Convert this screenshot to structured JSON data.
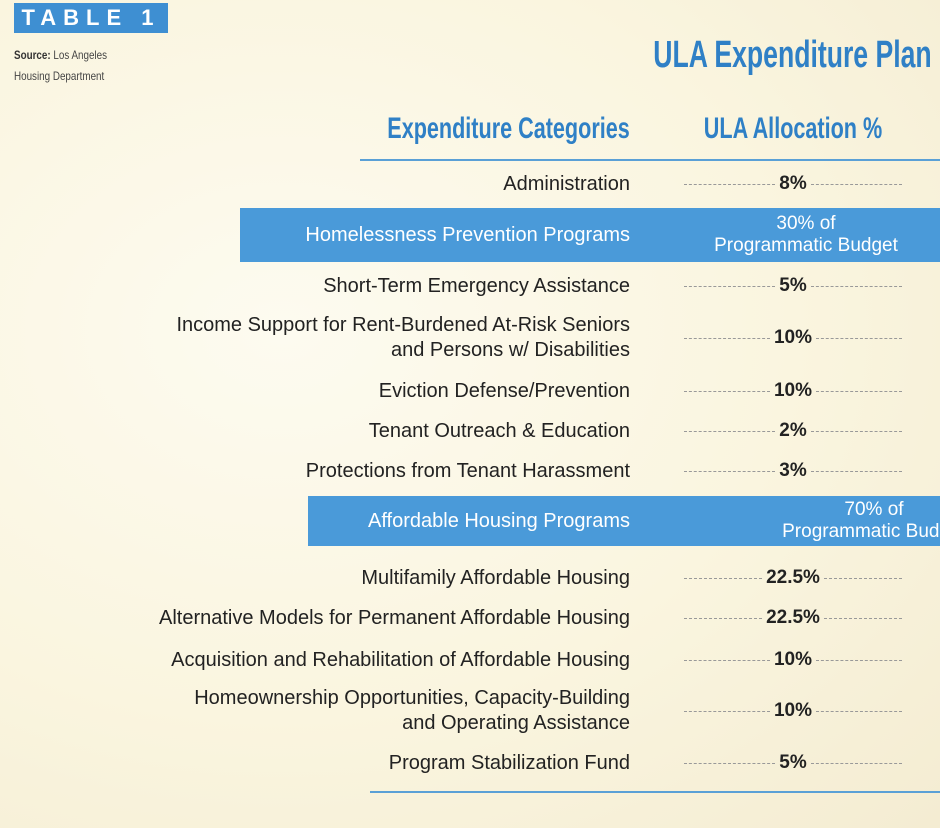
{
  "label": "TABLE 1",
  "source": {
    "prefix": "Source:",
    "lines": [
      "Los Angeles",
      "Housing Department"
    ]
  },
  "title": "ULA Expenditure Plan",
  "table": {
    "headers": [
      "Expenditure Categories",
      "ULA Allocation %"
    ],
    "rows": [
      {
        "category": [
          "Administration"
        ],
        "allocation": [
          "8%"
        ]
      }
    ],
    "sections": [
      {
        "category": [
          "Homelessness Prevention Programs"
        ],
        "allocation": [
          "30% of",
          "Programmatic Budget"
        ],
        "rows": [
          {
            "category": [
              "Short-Term Emergency Assistance"
            ],
            "allocation": [
              "5%"
            ]
          },
          {
            "category": [
              "Income Support for Rent-Burdened At-Risk Seniors",
              "and Persons w/ Disabilities"
            ],
            "allocation": [
              "10%"
            ]
          },
          {
            "category": [
              "Eviction Defense/Prevention"
            ],
            "allocation": [
              "10%"
            ]
          },
          {
            "category": [
              "Tenant Outreach & Education"
            ],
            "allocation": [
              "2%"
            ]
          },
          {
            "category": [
              "Protections from Tenant Harassment"
            ],
            "allocation": [
              "3%"
            ]
          }
        ]
      },
      {
        "category": [
          "Affordable Housing Programs"
        ],
        "allocation": [
          "70% of",
          "Programmatic Budget"
        ],
        "rows": [
          {
            "category": [
              "Multifamily Affordable Housing"
            ],
            "allocation": [
              "22.5%"
            ]
          },
          {
            "category": [
              "Alternative Models for Permanent Affordable Housing"
            ],
            "allocation": [
              "22.5%"
            ]
          },
          {
            "category": [
              "Acquisition and Rehabilitation of Affordable Housing"
            ],
            "allocation": [
              "10%"
            ]
          },
          {
            "category": [
              "Homeownership Opportunities, Capacity-Building",
              "and Operating Assistance"
            ],
            "allocation": [
              "10%"
            ]
          },
          {
            "category": [
              "Program Stabilization Fund"
            ],
            "allocation": [
              "5%"
            ]
          }
        ]
      }
    ]
  }
}
